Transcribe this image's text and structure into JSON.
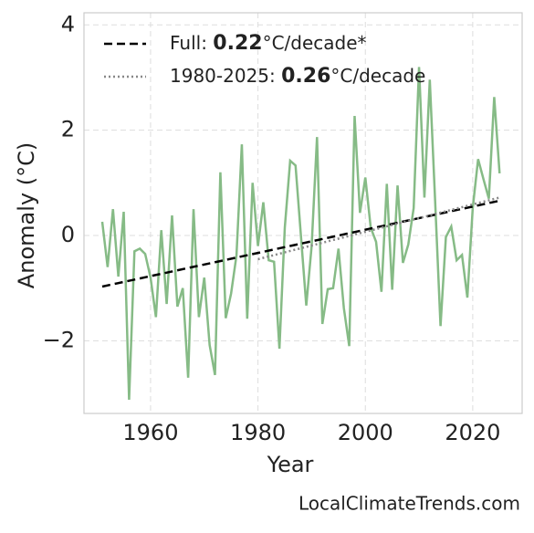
{
  "chart_data": {
    "type": "line",
    "xlabel": "Year",
    "ylabel": "Anomaly (°C)",
    "source": "LocalClimateTrends.com",
    "x": [
      1951,
      1952,
      1953,
      1954,
      1955,
      1956,
      1957,
      1958,
      1959,
      1960,
      1961,
      1962,
      1963,
      1964,
      1965,
      1966,
      1967,
      1968,
      1969,
      1970,
      1971,
      1972,
      1973,
      1974,
      1975,
      1976,
      1977,
      1978,
      1979,
      1980,
      1981,
      1982,
      1983,
      1984,
      1985,
      1986,
      1987,
      1988,
      1989,
      1990,
      1991,
      1992,
      1993,
      1994,
      1995,
      1996,
      1997,
      1998,
      1999,
      2000,
      2001,
      2002,
      2003,
      2004,
      2005,
      2006,
      2007,
      2008,
      2009,
      2010,
      2011,
      2012,
      2013,
      2014,
      2015,
      2016,
      2017,
      2018,
      2019,
      2020,
      2021,
      2022,
      2023,
      2024,
      2025
    ],
    "series": [
      {
        "color": "#86bb86",
        "linestyle": "solid",
        "values": [
          0.26,
          -0.6,
          0.5,
          -0.78,
          0.45,
          -3.12,
          -0.3,
          -0.25,
          -0.35,
          -0.8,
          -1.55,
          0.1,
          -1.3,
          0.38,
          -1.35,
          -1.0,
          -2.7,
          0.5,
          -1.55,
          -0.8,
          -2.08,
          -2.65,
          1.2,
          -1.57,
          -1.1,
          -0.38,
          1.73,
          -1.58,
          1.0,
          -0.2,
          0.63,
          -0.47,
          -0.5,
          -2.15,
          0.15,
          1.42,
          1.33,
          0,
          -1.33,
          -0.2,
          1.87,
          -1.68,
          -1.02,
          -1.0,
          -0.25,
          -1.38,
          -2.1,
          2.27,
          0.43,
          1.1,
          0.15,
          -0.12,
          -1.07,
          0.98,
          -1.03,
          0.95,
          -0.52,
          -0.17,
          0.52,
          3.2,
          0.72,
          2.96,
          0.65,
          -1.72,
          -0.03,
          0.17,
          -0.47,
          -0.37,
          -1.18,
          0.52,
          1.45,
          1.07,
          0.7,
          2.63,
          1.18
        ]
      },
      {
        "name": [
          "Full: ",
          "0.22",
          "°C/decade*"
        ],
        "color": "#000000",
        "linestyle": "dashed",
        "x": [
          1951,
          2025
        ],
        "values": [
          -0.97,
          0.66
        ]
      },
      {
        "name": [
          "1980-2025: ",
          "0.26",
          "°C/decade"
        ],
        "color": "#888888",
        "linestyle": "dotted",
        "x": [
          1980,
          2025
        ],
        "values": [
          -0.45,
          0.72
        ]
      }
    ],
    "xlim": [
      1947.6,
      2029.2
    ],
    "xticks": [
      1960,
      1980,
      2000,
      2020
    ],
    "ylim": [
      -3.38,
      4.23
    ],
    "yticks": [
      {
        "value": -2,
        "label": "−2"
      },
      0,
      2,
      4
    ],
    "grid": true,
    "legend": "upper left"
  }
}
